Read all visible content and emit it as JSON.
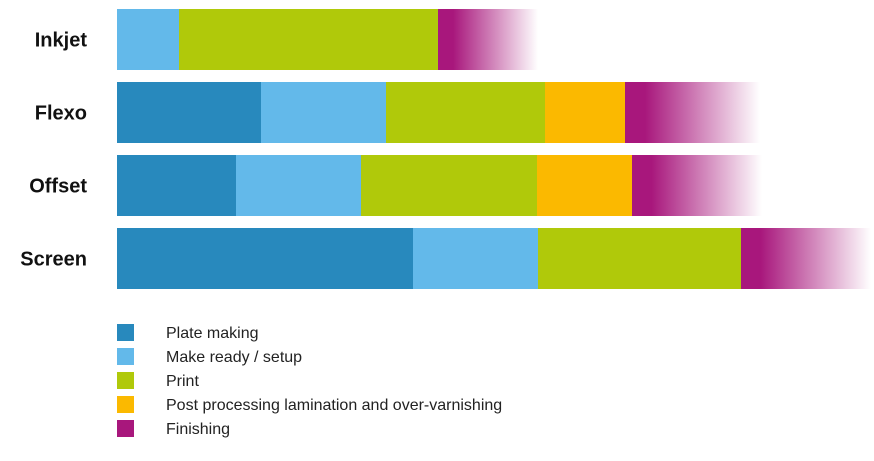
{
  "chart_data": {
    "type": "bar",
    "orientation": "horizontal",
    "stacked": true,
    "title": "",
    "xlabel": "",
    "ylabel": "",
    "grid": false,
    "legend_position": "bottom-left",
    "categories": [
      "Inkjet",
      "Flexo",
      "Offset",
      "Screen"
    ],
    "series": [
      {
        "name": "Plate making",
        "color": "#2889BD",
        "values": [
          0,
          144,
          119,
          296
        ]
      },
      {
        "name": "Make ready / setup",
        "color": "#63B9EA",
        "values": [
          62,
          125,
          125,
          125
        ]
      },
      {
        "name": "Print",
        "color": "#B0C90A",
        "values": [
          259,
          159,
          176,
          203
        ]
      },
      {
        "name": "Post processing lamination and over-varnishing",
        "color": "#FBB900",
        "values": [
          0,
          80,
          95,
          0
        ]
      },
      {
        "name": "Finishing",
        "color": "#A8177C",
        "fade": true,
        "values": [
          100,
          135,
          130,
          130
        ]
      }
    ]
  }
}
